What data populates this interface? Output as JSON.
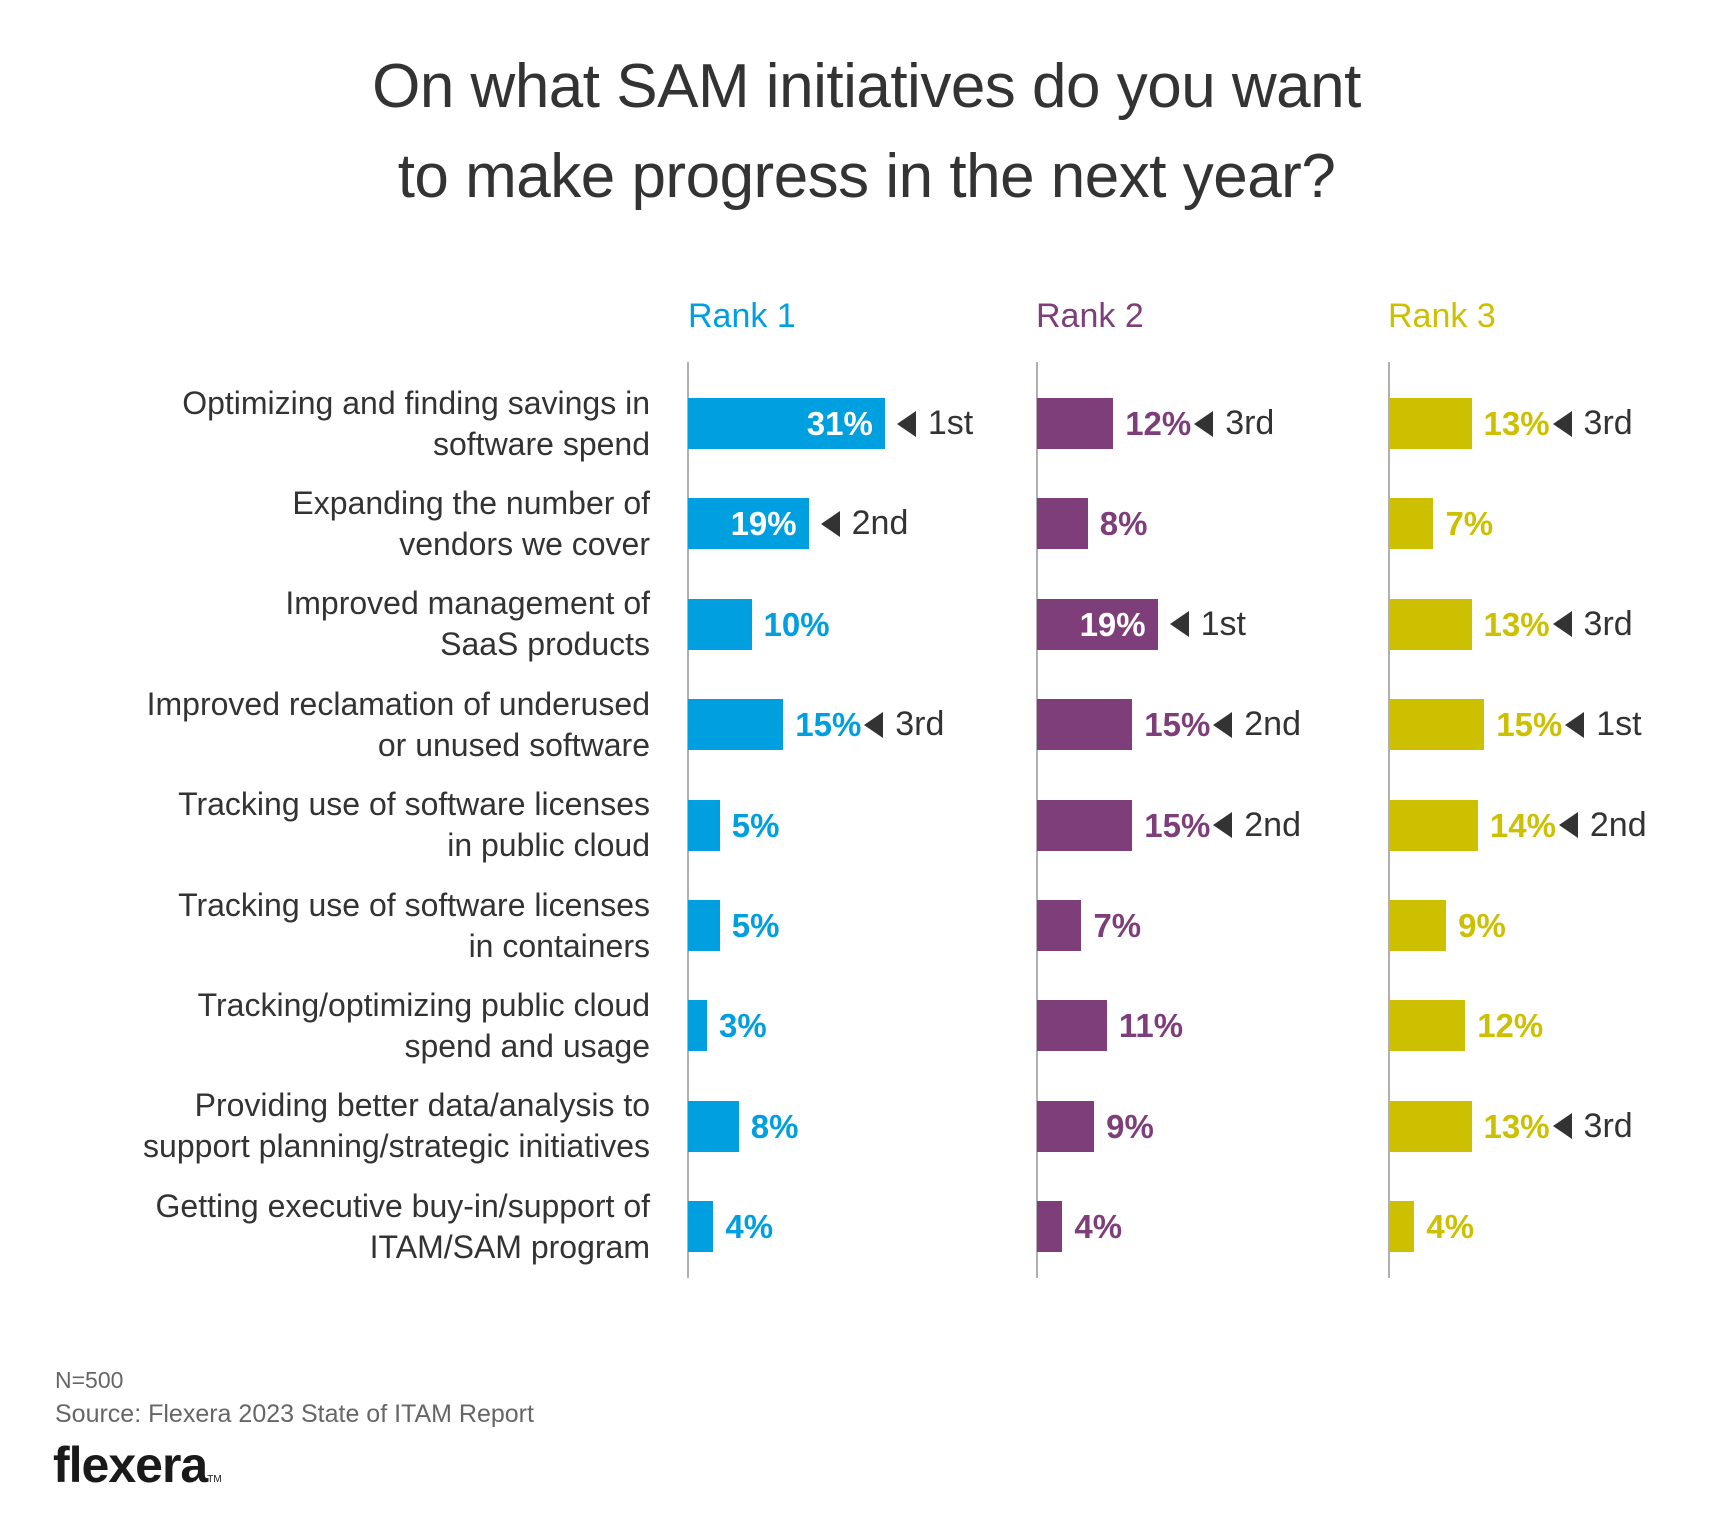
{
  "title": {
    "line1": "On what SAM initiatives do you want",
    "line2": "to make progress in the next year?"
  },
  "footer": {
    "sample": "N=500",
    "source": "Source: Flexera 2023 State of ITAM Report",
    "logo": "flexera",
    "logo_tm": "TM"
  },
  "colors": {
    "rank1": "#009fdf",
    "rank2": "#7e3e7a",
    "rank3": "#ccc000",
    "text": "#333333",
    "axis": "#b0b0b0"
  },
  "chart_data": {
    "type": "bar",
    "orientation": "horizontal",
    "title": "On what SAM initiatives do you want to make progress in the next year?",
    "categories": [
      [
        "Optimizing and finding savings in",
        "software spend"
      ],
      [
        "Expanding the number of",
        "vendors we cover"
      ],
      [
        "Improved management of",
        "SaaS products"
      ],
      [
        "Improved reclamation of underused",
        "or unused software"
      ],
      [
        "Tracking use of software licenses",
        "in public cloud"
      ],
      [
        "Tracking use of software licenses",
        "in containers"
      ],
      [
        "Tracking/optimizing public cloud",
        "spend and usage"
      ],
      [
        "Providing better data/analysis to",
        "support planning/strategic initiatives"
      ],
      [
        "Getting executive buy-in/support of",
        "ITAM/SAM program"
      ]
    ],
    "unit": "%",
    "series": [
      {
        "name": "Rank 1",
        "color": "#009fdf",
        "values": [
          31,
          19,
          10,
          15,
          5,
          5,
          3,
          8,
          4
        ],
        "labels": [
          "31%",
          "19%",
          "10%",
          "15%",
          "5%",
          "5%",
          "3%",
          "8%",
          "4%"
        ],
        "rank_marks": [
          "1st",
          "2nd",
          "",
          "3rd",
          "",
          "",
          "",
          "",
          ""
        ]
      },
      {
        "name": "Rank 2",
        "color": "#7e3e7a",
        "values": [
          12,
          8,
          19,
          15,
          15,
          7,
          11,
          9,
          4
        ],
        "labels": [
          "12%",
          "8%",
          "19%",
          "15%",
          "15%",
          "7%",
          "11%",
          "9%",
          "4%"
        ],
        "rank_marks": [
          "3rd",
          "",
          "1st",
          "2nd",
          "2nd",
          "",
          "",
          "",
          ""
        ]
      },
      {
        "name": "Rank 3",
        "color": "#ccc000",
        "values": [
          13,
          7,
          13,
          15,
          14,
          9,
          12,
          13,
          4
        ],
        "labels": [
          "13%",
          "7%",
          "13%",
          "15%",
          "14%",
          "9%",
          "12%",
          "13%",
          "4%"
        ],
        "rank_marks": [
          "3rd",
          "",
          "3rd",
          "1st",
          "2nd",
          "",
          "",
          "3rd",
          ""
        ]
      }
    ],
    "xlabel": "",
    "ylabel": "",
    "grid": false,
    "legend": "column headers on top"
  }
}
